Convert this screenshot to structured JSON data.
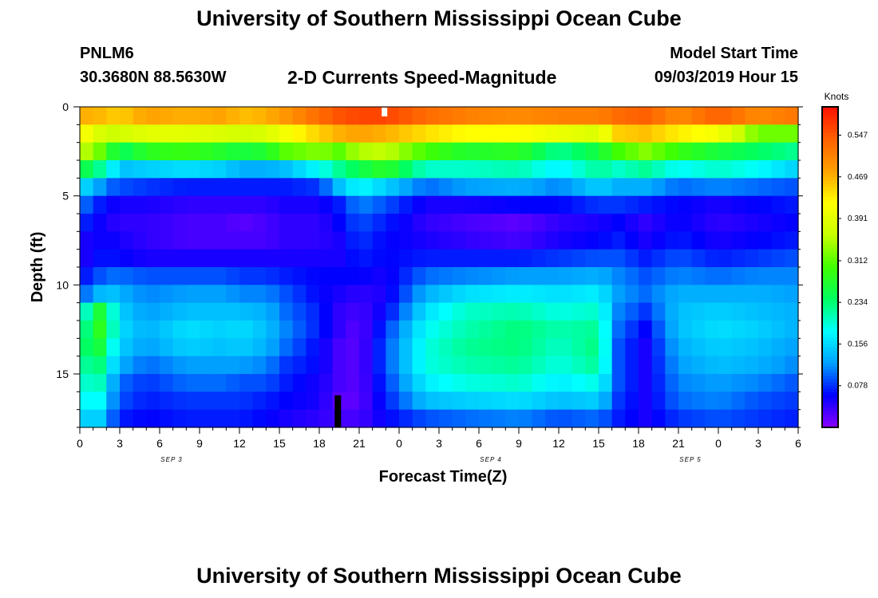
{
  "header": {
    "title": "University of Southern Mississippi Ocean Cube",
    "station_id": "PNLM6",
    "station_coords": "30.3680N 88.5630W",
    "chart_title": "2-D Currents Speed-Magnitude",
    "model_label": "Model Start Time",
    "model_time": "09/03/2019 Hour 15"
  },
  "footer": {
    "title": "University of Southern Mississippi Ocean Cube"
  },
  "chart_data": {
    "type": "heatmap",
    "title": "2-D Currents Speed-Magnitude",
    "xlabel": "Forecast Time(Z)",
    "ylabel": "Depth (ft)",
    "x_ticks": [
      "0",
      "3",
      "6",
      "9",
      "12",
      "15",
      "18",
      "21",
      "0",
      "3",
      "6",
      "9",
      "12",
      "15",
      "18",
      "21",
      "0",
      "3",
      "6"
    ],
    "date_labels": [
      {
        "label": "SEP 3",
        "tick_index": 2.3
      },
      {
        "label": "SEP 4",
        "tick_index": 10.3
      },
      {
        "label": "SEP 5",
        "tick_index": 15.3
      }
    ],
    "y_ticks": [
      "0",
      "5",
      "10",
      "15"
    ],
    "y_tick_values": [
      0,
      5,
      10,
      15
    ],
    "ylim": [
      0,
      18
    ],
    "x_range_hours": [
      0,
      54
    ],
    "colorbar": {
      "unit_label": "Knots",
      "tick_labels": [
        "0.078",
        "0.156",
        "0.234",
        "0.312",
        "0.391",
        "0.469",
        "0.547"
      ],
      "tick_values": [
        0.078,
        0.156,
        0.234,
        0.312,
        0.391,
        0.469,
        0.547
      ],
      "range": [
        0,
        0.6
      ],
      "colors": [
        "#8a00ff",
        "#0000ff",
        "#00a0ff",
        "#00ffff",
        "#00ff60",
        "#40ff00",
        "#c8ff00",
        "#ffff00",
        "#ffa000",
        "#ff6000",
        "#ff1000"
      ]
    },
    "depth_levels_ft": [
      0.5,
      1.5,
      2.5,
      3.5,
      4.5,
      5.5,
      6.5,
      7.5,
      8.5,
      9.5,
      10.5,
      11.5,
      12.5,
      13.5,
      14.5,
      15.5,
      16.5,
      17.5
    ],
    "time_keyframes_hours": [
      0,
      1,
      2,
      3,
      5,
      8,
      11,
      12,
      14,
      15.5,
      18,
      19.5,
      21,
      23,
      26,
      29,
      33,
      36,
      39,
      40.5,
      42.5,
      45,
      48,
      51,
      54
    ],
    "speed_knots": [
      [
        0.47,
        0.42,
        0.36,
        0.26,
        0.16,
        0.11,
        0.08,
        0.05,
        0.04,
        0.06,
        0.09,
        0.12,
        0.15,
        0.18,
        0.17,
        0.15,
        0.14,
        0.12
      ],
      [
        0.47,
        0.4,
        0.34,
        0.24,
        0.14,
        0.08,
        0.06,
        0.05,
        0.06,
        0.08,
        0.12,
        0.29,
        0.31,
        0.3,
        0.27,
        0.25,
        0.22,
        0.18
      ],
      [
        0.46,
        0.36,
        0.3,
        0.2,
        0.1,
        0.06,
        0.05,
        0.06,
        0.07,
        0.1,
        0.15,
        0.24,
        0.25,
        0.22,
        0.19,
        0.16,
        0.14,
        0.12
      ],
      [
        0.45,
        0.37,
        0.24,
        0.14,
        0.09,
        0.05,
        0.04,
        0.05,
        0.06,
        0.1,
        0.13,
        0.15,
        0.16,
        0.15,
        0.13,
        0.1,
        0.09,
        0.07
      ],
      [
        0.48,
        0.39,
        0.28,
        0.15,
        0.08,
        0.05,
        0.04,
        0.04,
        0.05,
        0.09,
        0.11,
        0.12,
        0.13,
        0.12,
        0.1,
        0.08,
        0.07,
        0.06
      ],
      [
        0.47,
        0.39,
        0.29,
        0.16,
        0.07,
        0.04,
        0.03,
        0.03,
        0.05,
        0.09,
        0.12,
        0.14,
        0.16,
        0.15,
        0.12,
        0.1,
        0.08,
        0.07
      ],
      [
        0.48,
        0.38,
        0.27,
        0.15,
        0.07,
        0.04,
        0.03,
        0.03,
        0.05,
        0.09,
        0.12,
        0.14,
        0.15,
        0.14,
        0.12,
        0.1,
        0.08,
        0.07
      ],
      [
        0.46,
        0.37,
        0.26,
        0.13,
        0.07,
        0.04,
        0.02,
        0.03,
        0.05,
        0.08,
        0.11,
        0.14,
        0.16,
        0.15,
        0.12,
        0.09,
        0.08,
        0.07
      ],
      [
        0.47,
        0.38,
        0.27,
        0.13,
        0.07,
        0.04,
        0.03,
        0.03,
        0.05,
        0.08,
        0.11,
        0.13,
        0.14,
        0.13,
        0.11,
        0.09,
        0.07,
        0.06
      ],
      [
        0.49,
        0.41,
        0.31,
        0.14,
        0.07,
        0.05,
        0.04,
        0.04,
        0.05,
        0.07,
        0.09,
        0.1,
        0.11,
        0.1,
        0.08,
        0.07,
        0.06,
        0.05
      ],
      [
        0.53,
        0.45,
        0.33,
        0.18,
        0.08,
        0.05,
        0.04,
        0.04,
        0.05,
        0.06,
        0.06,
        0.07,
        0.07,
        0.06,
        0.06,
        0.05,
        0.05,
        0.04
      ],
      [
        0.55,
        0.47,
        0.31,
        0.22,
        0.14,
        0.07,
        0.06,
        0.05,
        0.05,
        0.06,
        0.05,
        0.04,
        0.04,
        0.03,
        0.03,
        0.03,
        0.02,
        0.03
      ],
      [
        0.56,
        0.48,
        0.35,
        0.25,
        0.18,
        0.11,
        0.09,
        0.08,
        0.07,
        0.06,
        0.04,
        0.03,
        0.02,
        0.02,
        0.02,
        0.02,
        0.02,
        0.03
      ],
      [
        0.56,
        0.47,
        0.36,
        0.28,
        0.15,
        0.09,
        0.07,
        0.06,
        0.06,
        0.05,
        0.05,
        0.06,
        0.08,
        0.09,
        0.09,
        0.08,
        0.07,
        0.06
      ],
      [
        0.53,
        0.44,
        0.3,
        0.2,
        0.1,
        0.05,
        0.04,
        0.05,
        0.07,
        0.1,
        0.13,
        0.16,
        0.18,
        0.19,
        0.19,
        0.17,
        0.14,
        0.09
      ],
      [
        0.51,
        0.42,
        0.27,
        0.2,
        0.12,
        0.05,
        0.03,
        0.04,
        0.07,
        0.11,
        0.16,
        0.2,
        0.21,
        0.22,
        0.21,
        0.19,
        0.15,
        0.1
      ],
      [
        0.5,
        0.42,
        0.28,
        0.21,
        0.13,
        0.06,
        0.02,
        0.03,
        0.07,
        0.12,
        0.17,
        0.21,
        0.23,
        0.23,
        0.22,
        0.2,
        0.16,
        0.11
      ],
      [
        0.51,
        0.4,
        0.22,
        0.17,
        0.11,
        0.06,
        0.04,
        0.05,
        0.08,
        0.12,
        0.16,
        0.19,
        0.21,
        0.2,
        0.19,
        0.17,
        0.14,
        0.09
      ],
      [
        0.51,
        0.38,
        0.26,
        0.22,
        0.15,
        0.08,
        0.05,
        0.06,
        0.09,
        0.13,
        0.17,
        0.2,
        0.22,
        0.23,
        0.22,
        0.19,
        0.15,
        0.1
      ],
      [
        0.53,
        0.45,
        0.3,
        0.2,
        0.13,
        0.08,
        0.06,
        0.07,
        0.09,
        0.11,
        0.12,
        0.11,
        0.1,
        0.09,
        0.09,
        0.09,
        0.08,
        0.07
      ],
      [
        0.54,
        0.46,
        0.33,
        0.22,
        0.13,
        0.07,
        0.04,
        0.05,
        0.07,
        0.09,
        0.1,
        0.08,
        0.06,
        0.05,
        0.05,
        0.05,
        0.05,
        0.05
      ],
      [
        0.5,
        0.43,
        0.29,
        0.18,
        0.1,
        0.06,
        0.06,
        0.07,
        0.09,
        0.11,
        0.13,
        0.14,
        0.14,
        0.13,
        0.12,
        0.11,
        0.1,
        0.08
      ],
      [
        0.54,
        0.41,
        0.26,
        0.2,
        0.11,
        0.05,
        0.04,
        0.05,
        0.07,
        0.1,
        0.13,
        0.15,
        0.16,
        0.15,
        0.14,
        0.12,
        0.11,
        0.09
      ],
      [
        0.5,
        0.32,
        0.24,
        0.18,
        0.1,
        0.06,
        0.05,
        0.06,
        0.08,
        0.11,
        0.13,
        0.14,
        0.15,
        0.14,
        0.13,
        0.11,
        0.09,
        0.08
      ],
      [
        0.52,
        0.32,
        0.22,
        0.15,
        0.09,
        0.07,
        0.06,
        0.07,
        0.09,
        0.11,
        0.12,
        0.13,
        0.13,
        0.12,
        0.11,
        0.09,
        0.08,
        0.07
      ]
    ],
    "annotations": [
      {
        "type": "white-marker",
        "time_hours": 22.9,
        "depth_ft": 0.3
      },
      {
        "type": "black-marker",
        "time_hours": 19.4,
        "depth_ft": 17.2
      }
    ]
  }
}
